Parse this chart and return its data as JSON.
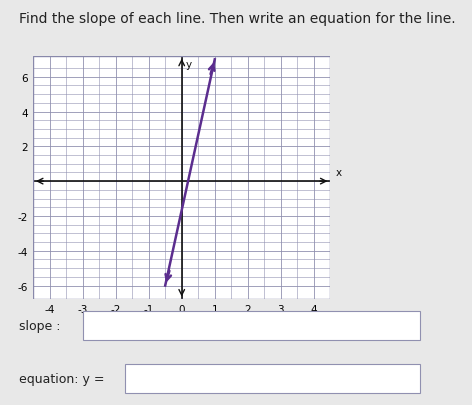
{
  "title": "Find the slope of each line. Then write an equation for the line.",
  "title_fontsize": 10,
  "page_bg": "#e8e8e8",
  "graph_bg": "#ffffff",
  "grid_color": "#9090b0",
  "axis_color": "#111111",
  "line_color": "#5b2d8e",
  "line_x1": -0.5,
  "line_y1": -6.0,
  "line_x2": 1.0,
  "line_y2": 7.0,
  "x_ticks": [
    -4,
    -3,
    -2,
    -1,
    0,
    1,
    2,
    3,
    4
  ],
  "y_ticks": [
    -6,
    -4,
    -2,
    2,
    4,
    6
  ],
  "xlim": [
    -4.5,
    4.5
  ],
  "ylim": [
    -6.8,
    7.2
  ],
  "slope_label": "slope :",
  "equation_label": "equation: y =",
  "box_bg": "#ffffff",
  "box_edge": "#9090b0",
  "label_fontsize": 9,
  "tick_fontsize": 7.5,
  "graph_border_color": "#8888aa"
}
